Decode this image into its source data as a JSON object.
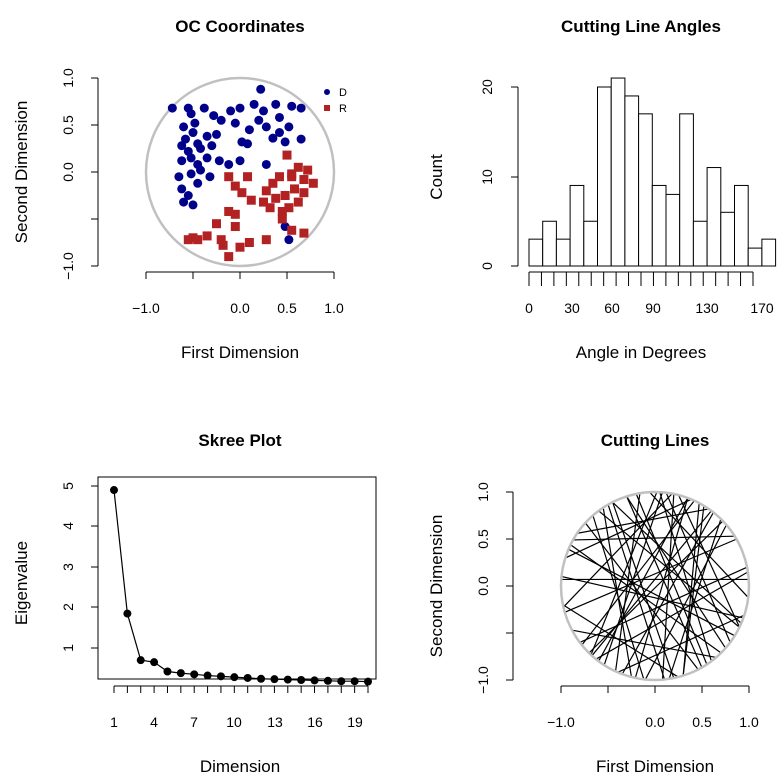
{
  "chart_data": [
    {
      "type": "scatter",
      "title": "OC Coordinates",
      "xlabel": "First Dimension",
      "ylabel": "Second Dimension",
      "xlim": [
        -1.0,
        1.0
      ],
      "ylim": [
        -1.0,
        1.0
      ],
      "x_ticks": [
        "−1.0",
        "0.0",
        "0.5",
        "1.0"
      ],
      "y_ticks": [
        "−1.0",
        "0.0",
        "0.5",
        "1.0"
      ],
      "legend_position": "top-right",
      "series": [
        {
          "name": "D",
          "color": "#00008b",
          "marker": "circle",
          "points": [
            [
              -0.72,
              0.68
            ],
            [
              -0.55,
              0.68
            ],
            [
              -0.52,
              0.62
            ],
            [
              -0.48,
              0.52
            ],
            [
              -0.38,
              0.68
            ],
            [
              -0.28,
              0.6
            ],
            [
              -0.2,
              0.55
            ],
            [
              -0.1,
              0.65
            ],
            [
              0.0,
              0.68
            ],
            [
              0.15,
              0.72
            ],
            [
              0.22,
              0.88
            ],
            [
              0.25,
              0.65
            ],
            [
              0.38,
              0.72
            ],
            [
              0.42,
              0.58
            ],
            [
              0.55,
              0.7
            ],
            [
              0.65,
              0.68
            ],
            [
              -0.6,
              0.48
            ],
            [
              -0.5,
              0.42
            ],
            [
              -0.58,
              0.35
            ],
            [
              -0.45,
              0.3
            ],
            [
              -0.35,
              0.38
            ],
            [
              -0.25,
              0.4
            ],
            [
              -0.05,
              0.52
            ],
            [
              0.1,
              0.45
            ],
            [
              0.2,
              0.55
            ],
            [
              0.28,
              0.48
            ],
            [
              0.42,
              0.42
            ],
            [
              0.52,
              0.48
            ],
            [
              0.65,
              0.35
            ],
            [
              -0.62,
              0.28
            ],
            [
              -0.55,
              0.22
            ],
            [
              -0.42,
              0.25
            ],
            [
              -0.3,
              0.28
            ],
            [
              0.02,
              0.32
            ],
            [
              0.08,
              0.3
            ],
            [
              0.35,
              0.36
            ],
            [
              0.48,
              0.32
            ],
            [
              -0.62,
              0.12
            ],
            [
              -0.52,
              0.15
            ],
            [
              -0.45,
              0.08
            ],
            [
              -0.35,
              0.15
            ],
            [
              -0.22,
              0.12
            ],
            [
              -0.12,
              0.08
            ],
            [
              0.0,
              0.12
            ],
            [
              0.28,
              0.08
            ],
            [
              -0.65,
              -0.05
            ],
            [
              -0.52,
              -0.02
            ],
            [
              -0.42,
              0.02
            ],
            [
              -0.32,
              -0.05
            ],
            [
              -0.62,
              -0.18
            ],
            [
              -0.55,
              -0.25
            ],
            [
              -0.45,
              -0.12
            ],
            [
              -0.6,
              -0.32
            ],
            [
              -0.5,
              -0.35
            ],
            [
              0.52,
              -0.72
            ],
            [
              0.48,
              -0.58
            ]
          ]
        },
        {
          "name": "R",
          "color": "#b22222",
          "marker": "square",
          "points": [
            [
              0.5,
              0.18
            ],
            [
              0.62,
              0.05
            ],
            [
              0.72,
              0.02
            ],
            [
              0.68,
              -0.08
            ],
            [
              0.78,
              -0.12
            ],
            [
              0.55,
              -0.02
            ],
            [
              0.42,
              -0.05
            ],
            [
              0.35,
              -0.12
            ],
            [
              0.28,
              -0.2
            ],
            [
              0.38,
              -0.28
            ],
            [
              0.48,
              -0.25
            ],
            [
              0.58,
              -0.18
            ],
            [
              0.68,
              -0.22
            ],
            [
              0.62,
              -0.32
            ],
            [
              0.52,
              -0.38
            ],
            [
              0.45,
              -0.42
            ],
            [
              -0.12,
              -0.05
            ],
            [
              -0.05,
              -0.15
            ],
            [
              0.02,
              -0.22
            ],
            [
              0.12,
              -0.3
            ],
            [
              0.25,
              -0.32
            ],
            [
              0.32,
              -0.38
            ],
            [
              0.45,
              -0.5
            ],
            [
              0.55,
              -0.62
            ],
            [
              0.68,
              -0.65
            ],
            [
              -0.05,
              -0.45
            ],
            [
              -0.12,
              -0.42
            ],
            [
              -0.25,
              -0.55
            ],
            [
              -0.35,
              -0.68
            ],
            [
              -0.45,
              -0.72
            ],
            [
              -0.5,
              -0.7
            ],
            [
              -0.55,
              -0.72
            ],
            [
              -0.2,
              -0.72
            ],
            [
              -0.18,
              -0.78
            ],
            [
              -0.12,
              -0.9
            ],
            [
              0.0,
              -0.8
            ],
            [
              0.1,
              -0.75
            ],
            [
              0.28,
              -0.72
            ],
            [
              -0.05,
              -0.58
            ],
            [
              0.55,
              -0.05
            ],
            [
              0.08,
              -0.05
            ]
          ]
        }
      ]
    },
    {
      "type": "bar",
      "title": "Cutting Line Angles",
      "xlabel": "Angle in Degrees",
      "ylabel": "Count",
      "xlim": [
        0,
        180
      ],
      "ylim": [
        0,
        21
      ],
      "x_ticks": [
        "0",
        "30",
        "60",
        "90",
        "130",
        "170"
      ],
      "y_ticks": [
        "0",
        "10",
        "20"
      ],
      "bin_width": 10,
      "values": [
        3,
        5,
        3,
        9,
        5,
        20,
        21,
        19,
        17,
        9,
        8,
        17,
        5,
        11,
        6,
        9,
        2,
        3
      ]
    },
    {
      "type": "line",
      "title": "Skree Plot",
      "xlabel": "Dimension",
      "ylabel": "Eigenvalue",
      "xlim": [
        1,
        20
      ],
      "ylim": [
        0.15,
        5
      ],
      "x_ticks": [
        "1",
        "4",
        "7",
        "10",
        "13",
        "16",
        "19"
      ],
      "y_ticks": [
        "1",
        "2",
        "3",
        "4",
        "5"
      ],
      "x": [
        1,
        2,
        3,
        4,
        5,
        6,
        7,
        8,
        9,
        10,
        11,
        12,
        13,
        14,
        15,
        16,
        17,
        18,
        19,
        20
      ],
      "y": [
        4.9,
        1.85,
        0.7,
        0.65,
        0.42,
        0.38,
        0.35,
        0.32,
        0.3,
        0.28,
        0.26,
        0.24,
        0.23,
        0.22,
        0.21,
        0.2,
        0.19,
        0.18,
        0.18,
        0.17
      ]
    },
    {
      "type": "line",
      "title": "Cutting Lines",
      "xlabel": "First Dimension",
      "ylabel": "Second Dimension",
      "xlim": [
        -1.0,
        1.0
      ],
      "ylim": [
        -1.0,
        1.0
      ],
      "x_ticks": [
        "−1.0",
        "0.0",
        "0.5",
        "1.0"
      ],
      "y_ticks": [
        "−1.0",
        "0.0",
        "0.5",
        "1.0"
      ],
      "cutting_lines": [
        [
          [
            -0.74,
            0.67
          ],
          [
            0.46,
            -0.89
          ]
        ],
        [
          [
            -0.7,
            -0.71
          ],
          [
            0.72,
            0.69
          ]
        ],
        [
          [
            -0.5,
            0.87
          ],
          [
            0.1,
            -0.99
          ]
        ],
        [
          [
            0.08,
            1.0
          ],
          [
            -0.54,
            -0.84
          ]
        ],
        [
          [
            0.35,
            0.94
          ],
          [
            -0.21,
            -0.98
          ]
        ],
        [
          [
            0.6,
            0.8
          ],
          [
            -0.67,
            -0.74
          ]
        ],
        [
          [
            -0.96,
            -0.28
          ],
          [
            0.87,
            0.5
          ]
        ],
        [
          [
            -0.9,
            0.44
          ],
          [
            0.7,
            -0.71
          ]
        ],
        [
          [
            -0.3,
            0.95
          ],
          [
            0.5,
            -0.87
          ]
        ],
        [
          [
            0.2,
            0.98
          ],
          [
            0.08,
            -1.0
          ]
        ],
        [
          [
            -0.99,
            0.1
          ],
          [
            0.94,
            -0.34
          ]
        ],
        [
          [
            -0.8,
            -0.6
          ],
          [
            0.98,
            0.2
          ]
        ],
        [
          [
            -0.16,
            0.99
          ],
          [
            -0.42,
            -0.91
          ]
        ],
        [
          [
            0.47,
            0.88
          ],
          [
            0.3,
            -0.95
          ]
        ],
        [
          [
            -0.6,
            0.8
          ],
          [
            0.9,
            -0.44
          ]
        ],
        [
          [
            0.85,
            0.53
          ],
          [
            -0.87,
            0.49
          ]
        ],
        [
          [
            0.92,
            -0.4
          ],
          [
            -0.45,
            0.89
          ]
        ],
        [
          [
            -0.1,
            -0.99
          ],
          [
            0.76,
            0.65
          ]
        ],
        [
          [
            -0.83,
            0.56
          ],
          [
            0.57,
            0.82
          ]
        ],
        [
          [
            0.25,
            -0.97
          ],
          [
            -0.98,
            -0.2
          ]
        ],
        [
          [
            -0.4,
            -0.92
          ],
          [
            0.95,
            -0.31
          ]
        ],
        [
          [
            0.7,
            0.71
          ],
          [
            0.15,
            -0.99
          ]
        ],
        [
          [
            -0.95,
            0.3
          ],
          [
            0.38,
            0.92
          ]
        ],
        [
          [
            -0.05,
            0.99
          ],
          [
            0.99,
            -0.12
          ]
        ],
        [
          [
            -0.68,
            -0.73
          ],
          [
            0.02,
            1.0
          ]
        ],
        [
          [
            0.55,
            -0.83
          ],
          [
            -0.2,
            0.98
          ]
        ],
        [
          [
            -0.88,
            -0.47
          ],
          [
            0.65,
            -0.76
          ]
        ],
        [
          [
            0.99,
            0.15
          ],
          [
            -0.63,
            -0.78
          ]
        ],
        [
          [
            0.12,
            0.99
          ],
          [
            0.8,
            -0.6
          ]
        ],
        [
          [
            -0.55,
            0.83
          ],
          [
            -0.25,
            -0.97
          ]
        ],
        [
          [
            -1.0,
            0.07
          ],
          [
            1.0,
            0.07
          ]
        ],
        [
          [
            -0.35,
            -0.94
          ],
          [
            0.62,
            0.78
          ]
        ],
        [
          [
            0.42,
            0.91
          ],
          [
            -0.78,
            -0.63
          ]
        ],
        [
          [
            -0.92,
            0.39
          ],
          [
            0.85,
            -0.53
          ]
        ],
        [
          [
            0.3,
            -0.95
          ],
          [
            0.52,
            0.85
          ]
        ],
        [
          [
            -0.12,
            -0.99
          ],
          [
            -0.66,
            0.75
          ]
        ],
        [
          [
            0.75,
            -0.66
          ],
          [
            -0.3,
            0.95
          ]
        ],
        [
          [
            0.05,
            1.0
          ],
          [
            0.6,
            -0.8
          ]
        ],
        [
          [
            -0.45,
            0.89
          ],
          [
            0.2,
            -0.98
          ]
        ],
        [
          [
            -0.97,
            -0.22
          ],
          [
            0.18,
            0.98
          ]
        ],
        [
          [
            0.9,
            -0.44
          ],
          [
            0.25,
            0.97
          ]
        ],
        [
          [
            -0.6,
            -0.8
          ],
          [
            0.35,
            0.94
          ]
        ]
      ]
    }
  ]
}
